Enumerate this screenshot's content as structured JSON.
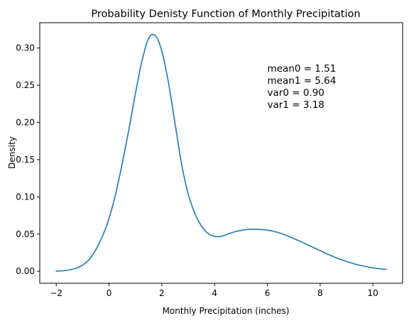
{
  "chart_data": {
    "type": "line",
    "title": "Probability Denisty Function of Monthly Precipitation",
    "xlabel": "Monthly Precipitation (inches)",
    "ylabel": "Density",
    "xlim": [
      -2.625,
      11.125
    ],
    "ylim": [
      -0.016,
      0.334
    ],
    "xticks": [
      -2,
      0,
      2,
      4,
      6,
      8,
      10
    ],
    "xtick_labels": [
      "−2",
      "0",
      "2",
      "4",
      "6",
      "8",
      "10"
    ],
    "yticks": [
      0.0,
      0.05,
      0.1,
      0.15,
      0.2,
      0.25,
      0.3
    ],
    "ytick_labels": [
      "0.00",
      "0.05",
      "0.10",
      "0.15",
      "0.20",
      "0.25",
      "0.30"
    ],
    "grid": false,
    "line_color": "#1f77b4",
    "series": [
      {
        "x": [
          -2.0,
          -1.75,
          -1.5,
          -1.25,
          -1.0,
          -0.75,
          -0.5,
          -0.25,
          0.0,
          0.25,
          0.5,
          0.75,
          1.0,
          1.25,
          1.5,
          1.75,
          2.0,
          2.25,
          2.5,
          2.75,
          3.0,
          3.25,
          3.5,
          3.75,
          4.0,
          4.25,
          4.5,
          4.75,
          5.0,
          5.25,
          5.5,
          5.75,
          6.0,
          6.25,
          6.5,
          6.75,
          7.0,
          7.25,
          7.5,
          7.75,
          8.0,
          8.25,
          8.5,
          8.75,
          9.0,
          9.25,
          9.5,
          9.75,
          10.0,
          10.25,
          10.5
        ],
        "y": [
          0.0003,
          0.0008,
          0.0019,
          0.0041,
          0.0084,
          0.016,
          0.029,
          0.047,
          0.071,
          0.104,
          0.145,
          0.19,
          0.239,
          0.283,
          0.313,
          0.317,
          0.296,
          0.254,
          0.199,
          0.144,
          0.104,
          0.078,
          0.061,
          0.051,
          0.047,
          0.047,
          0.05,
          0.053,
          0.055,
          0.0563,
          0.0565,
          0.0562,
          0.0553,
          0.0536,
          0.0511,
          0.0478,
          0.0441,
          0.0402,
          0.0361,
          0.0319,
          0.0278,
          0.0237,
          0.0198,
          0.0163,
          0.0132,
          0.0105,
          0.0082,
          0.0063,
          0.0047,
          0.0035,
          0.0025
        ]
      }
    ],
    "annotations": [
      "mean0 = 1.51",
      "mean1 = 5.64",
      "var0 = 0.90",
      "var1 = 3.18"
    ],
    "annotation_anchor": {
      "x": 6.0,
      "y": 0.268
    }
  }
}
